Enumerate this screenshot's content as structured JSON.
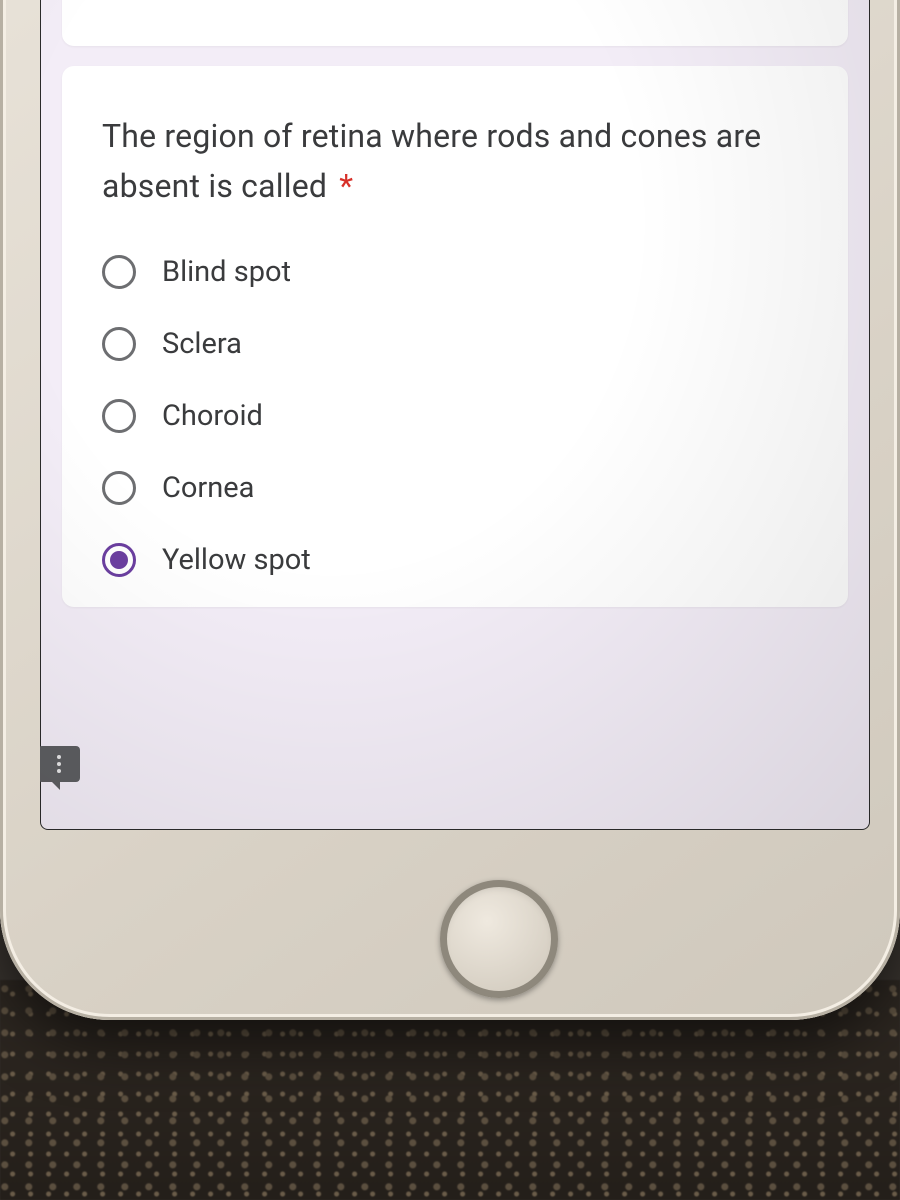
{
  "colors": {
    "page_bg": "#f3edf7",
    "card_bg": "#ffffff",
    "text": "#3a3b3d",
    "required": "#d73029",
    "radio_border": "#6d6e71",
    "radio_selected": "#6b3fa0",
    "bubble": "#5d5e61",
    "phone_body": "#d9d2c6"
  },
  "question": {
    "text": "The region of retina where rods and cones are absent is called",
    "required_mark": "*",
    "font_size": 32
  },
  "options": [
    {
      "label": "Blind spot",
      "selected": false
    },
    {
      "label": "Sclera",
      "selected": false
    },
    {
      "label": "Choroid",
      "selected": false
    },
    {
      "label": "Cornea",
      "selected": false
    },
    {
      "label": "Yellow spot",
      "selected": true
    }
  ],
  "feedback_tooltip": "!"
}
